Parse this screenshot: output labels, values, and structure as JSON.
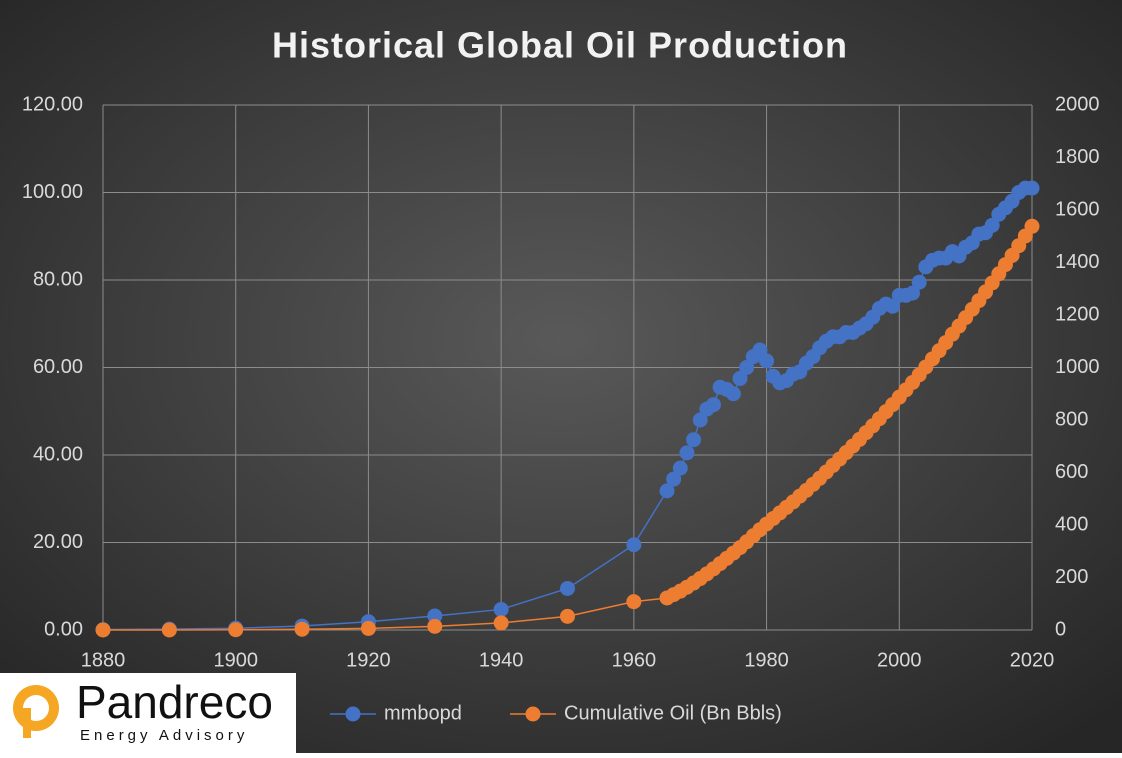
{
  "chart_data": {
    "type": "line",
    "title": "Historical Global Oil Production",
    "x": [
      1880,
      1890,
      1900,
      1910,
      1920,
      1930,
      1940,
      1950,
      1960,
      1965,
      1966,
      1967,
      1968,
      1969,
      1970,
      1971,
      1972,
      1973,
      1974,
      1975,
      1976,
      1977,
      1978,
      1979,
      1980,
      1981,
      1982,
      1983,
      1984,
      1985,
      1986,
      1987,
      1988,
      1989,
      1990,
      1991,
      1992,
      1993,
      1994,
      1995,
      1996,
      1997,
      1998,
      1999,
      2000,
      2001,
      2002,
      2003,
      2004,
      2005,
      2006,
      2007,
      2008,
      2009,
      2010,
      2011,
      2012,
      2013,
      2014,
      2015,
      2016,
      2017,
      2018,
      2019,
      2020
    ],
    "series": [
      {
        "name": "mmbopd",
        "color": "#4472c4",
        "values": [
          0.1,
          0.2,
          0.4,
          0.9,
          1.9,
          3.2,
          4.7,
          9.5,
          19.5,
          31.8,
          34.5,
          37,
          40.5,
          43.5,
          48,
          50.5,
          51.5,
          55.5,
          55,
          54,
          57.5,
          60,
          62.5,
          64,
          61.5,
          58,
          56.5,
          57,
          58.5,
          59,
          61,
          62.5,
          64.5,
          66,
          67,
          67,
          68,
          68,
          69,
          70,
          71.5,
          73.5,
          74.5,
          74,
          76.5,
          76.5,
          77,
          79.5,
          83,
          84.5,
          85,
          85,
          86.5,
          85.5,
          87.5,
          88.5,
          90.5,
          90.8,
          92.5,
          95,
          96.5,
          98,
          100,
          101,
          101
        ]
      },
      {
        "name": "Cumulative Oil (Bn Bbls)",
        "color": "#ed7d31",
        "axis": "y2",
        "values": [
          0,
          0,
          1,
          3,
          6,
          14,
          27,
          52,
          108,
          122,
          135,
          148,
          163,
          179,
          196,
          214,
          233,
          253,
          273,
          293,
          314,
          336,
          359,
          382,
          404,
          425,
          446,
          467,
          488,
          510,
          532,
          555,
          578,
          602,
          627,
          651,
          676,
          701,
          726,
          752,
          778,
          805,
          832,
          859,
          887,
          915,
          943,
          972,
          1002,
          1033,
          1064,
          1095,
          1127,
          1158,
          1190,
          1222,
          1255,
          1288,
          1322,
          1357,
          1392,
          1427,
          1464,
          1501,
          1538
        ]
      }
    ],
    "xlim": [
      1880,
      2020
    ],
    "xticks": [
      1880,
      1900,
      1920,
      1940,
      1960,
      1980,
      2000,
      2020
    ],
    "ylim": [
      0,
      120
    ],
    "yticks": [
      {
        "value": 0,
        "label": "0.00"
      },
      {
        "value": 20,
        "label": "20.00"
      },
      {
        "value": 40,
        "label": "40.00"
      },
      {
        "value": 60,
        "label": "60.00"
      },
      {
        "value": 80,
        "label": "80.00"
      },
      {
        "value": 100,
        "label": "100.00"
      },
      {
        "value": 120,
        "label": "120.00"
      }
    ],
    "y2lim": [
      0,
      2000
    ],
    "y2ticks": [
      0,
      200,
      400,
      600,
      800,
      1000,
      1200,
      1400,
      1600,
      1800,
      2000
    ],
    "grid": true,
    "legend": "bottom"
  },
  "logo": {
    "name": "Pandreco",
    "tagline": "Energy Advisory"
  }
}
